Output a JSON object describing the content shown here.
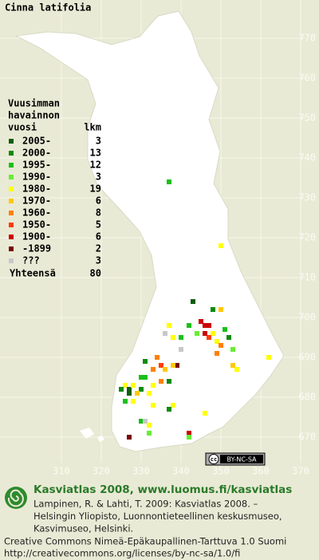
{
  "title": "Cinna latifolia",
  "legend": {
    "heading": [
      "Vuusimman",
      "havainnon",
      "vuosi"
    ],
    "count_heading": "lkm",
    "entries": [
      {
        "label": "2005-",
        "count": 3,
        "color": "#0b5e0b"
      },
      {
        "label": "2000-",
        "count": 13,
        "color": "#0c8a0c"
      },
      {
        "label": "1995-",
        "count": 12,
        "color": "#19c019"
      },
      {
        "label": "1990-",
        "count": 3,
        "color": "#66ee33"
      },
      {
        "label": "1980-",
        "count": 19,
        "color": "#ffff00"
      },
      {
        "label": "1970-",
        "count": 6,
        "color": "#ffc800"
      },
      {
        "label": "1960-",
        "count": 8,
        "color": "#ff8000"
      },
      {
        "label": "1950-",
        "count": 5,
        "color": "#ff3c00"
      },
      {
        "label": "1900-",
        "count": 6,
        "color": "#cc0000"
      },
      {
        "label": "-1899",
        "count": 2,
        "color": "#7a0000"
      },
      {
        "label": "???",
        "count": 3,
        "color": "#c8c8c8"
      }
    ],
    "total_label": "Yhteensä",
    "total": 80
  },
  "grid": {
    "x_labels": [
      310,
      320,
      330,
      340,
      350,
      360,
      370
    ],
    "y_labels": [
      670,
      680,
      690,
      700,
      710,
      720,
      730,
      740,
      750,
      760,
      770
    ]
  },
  "points": [
    {
      "x": 337,
      "y": 734,
      "period": 2
    },
    {
      "x": 350,
      "y": 718,
      "period": 4
    },
    {
      "x": 343,
      "y": 704,
      "period": 0
    },
    {
      "x": 348,
      "y": 702,
      "period": 1
    },
    {
      "x": 350,
      "y": 702,
      "period": 5
    },
    {
      "x": 346,
      "y": 698,
      "period": 8
    },
    {
      "x": 347,
      "y": 698,
      "period": 8
    },
    {
      "x": 342,
      "y": 698,
      "period": 2
    },
    {
      "x": 337,
      "y": 698,
      "period": 4
    },
    {
      "x": 351,
      "y": 697,
      "period": 2
    },
    {
      "x": 348,
      "y": 696,
      "period": 4
    },
    {
      "x": 352,
      "y": 695,
      "period": 1
    },
    {
      "x": 336,
      "y": 696,
      "period": 10
    },
    {
      "x": 338,
      "y": 695,
      "period": 4
    },
    {
      "x": 340,
      "y": 695,
      "period": 2
    },
    {
      "x": 344,
      "y": 696,
      "period": 3
    },
    {
      "x": 347,
      "y": 695,
      "period": 7
    },
    {
      "x": 349,
      "y": 694,
      "period": 4
    },
    {
      "x": 353,
      "y": 692,
      "period": 3
    },
    {
      "x": 349,
      "y": 691,
      "period": 6
    },
    {
      "x": 340,
      "y": 692,
      "period": 10
    },
    {
      "x": 334,
      "y": 690,
      "period": 6
    },
    {
      "x": 339,
      "y": 688,
      "period": 9
    },
    {
      "x": 338,
      "y": 688,
      "period": 5
    },
    {
      "x": 331,
      "y": 689,
      "period": 1
    },
    {
      "x": 333,
      "y": 687,
      "period": 6
    },
    {
      "x": 335,
      "y": 688,
      "period": 7
    },
    {
      "x": 331,
      "y": 685,
      "period": 2
    },
    {
      "x": 335,
      "y": 684,
      "period": 6
    },
    {
      "x": 326,
      "y": 683,
      "period": 4
    },
    {
      "x": 327,
      "y": 682,
      "period": 0
    },
    {
      "x": 325,
      "y": 682,
      "period": 1
    },
    {
      "x": 328,
      "y": 683,
      "period": 4
    },
    {
      "x": 330,
      "y": 682,
      "period": 1
    },
    {
      "x": 333,
      "y": 683,
      "period": 4
    },
    {
      "x": 337,
      "y": 684,
      "period": 1
    },
    {
      "x": 326,
      "y": 679,
      "period": 2
    },
    {
      "x": 327,
      "y": 681,
      "period": 0
    },
    {
      "x": 332,
      "y": 681,
      "period": 4
    },
    {
      "x": 333,
      "y": 678,
      "period": 4
    },
    {
      "x": 338,
      "y": 678,
      "period": 4
    },
    {
      "x": 337,
      "y": 677,
      "period": 1
    },
    {
      "x": 346,
      "y": 676,
      "period": 4
    },
    {
      "x": 330,
      "y": 674,
      "period": 2
    },
    {
      "x": 331,
      "y": 674,
      "period": 10
    },
    {
      "x": 332,
      "y": 673,
      "period": 4
    },
    {
      "x": 332,
      "y": 671,
      "period": 3
    },
    {
      "x": 327,
      "y": 670,
      "period": 9
    },
    {
      "x": 342,
      "y": 671,
      "period": 8
    },
    {
      "x": 342,
      "y": 670,
      "period": 3
    },
    {
      "x": 362,
      "y": 690,
      "period": 4
    },
    {
      "x": 354,
      "y": 687,
      "period": 4
    },
    {
      "x": 353,
      "y": 688,
      "period": 5
    },
    {
      "x": 346,
      "y": 696,
      "period": 8
    },
    {
      "x": 328,
      "y": 679,
      "period": 4
    },
    {
      "x": 330,
      "y": 685,
      "period": 2
    },
    {
      "x": 336,
      "y": 687,
      "period": 5
    },
    {
      "x": 350,
      "y": 693,
      "period": 6
    },
    {
      "x": 345,
      "y": 699,
      "period": 8
    },
    {
      "x": 329,
      "y": 681,
      "period": 5
    }
  ],
  "badge": {
    "cc": "cc",
    "terms": "BY-NC-SA"
  },
  "footer": {
    "heading": "Kasviatlas 2008, www.luomus.fi/kasviatlas",
    "citation": [
      "Lampinen, R. & Lahti, T. 2009: Kasviatlas 2008. –",
      "Helsingin Yliopisto, Luonnontieteellinen keskusmuseo,",
      "Kasvimuseo, Helsinki."
    ],
    "license": [
      "Creative Commons Nimeä-Epäkaupallinen-Tarttuva 1.0 Suomi",
      "http://creativecommons.org/licenses/by-nc-sa/1.0/fi"
    ]
  }
}
